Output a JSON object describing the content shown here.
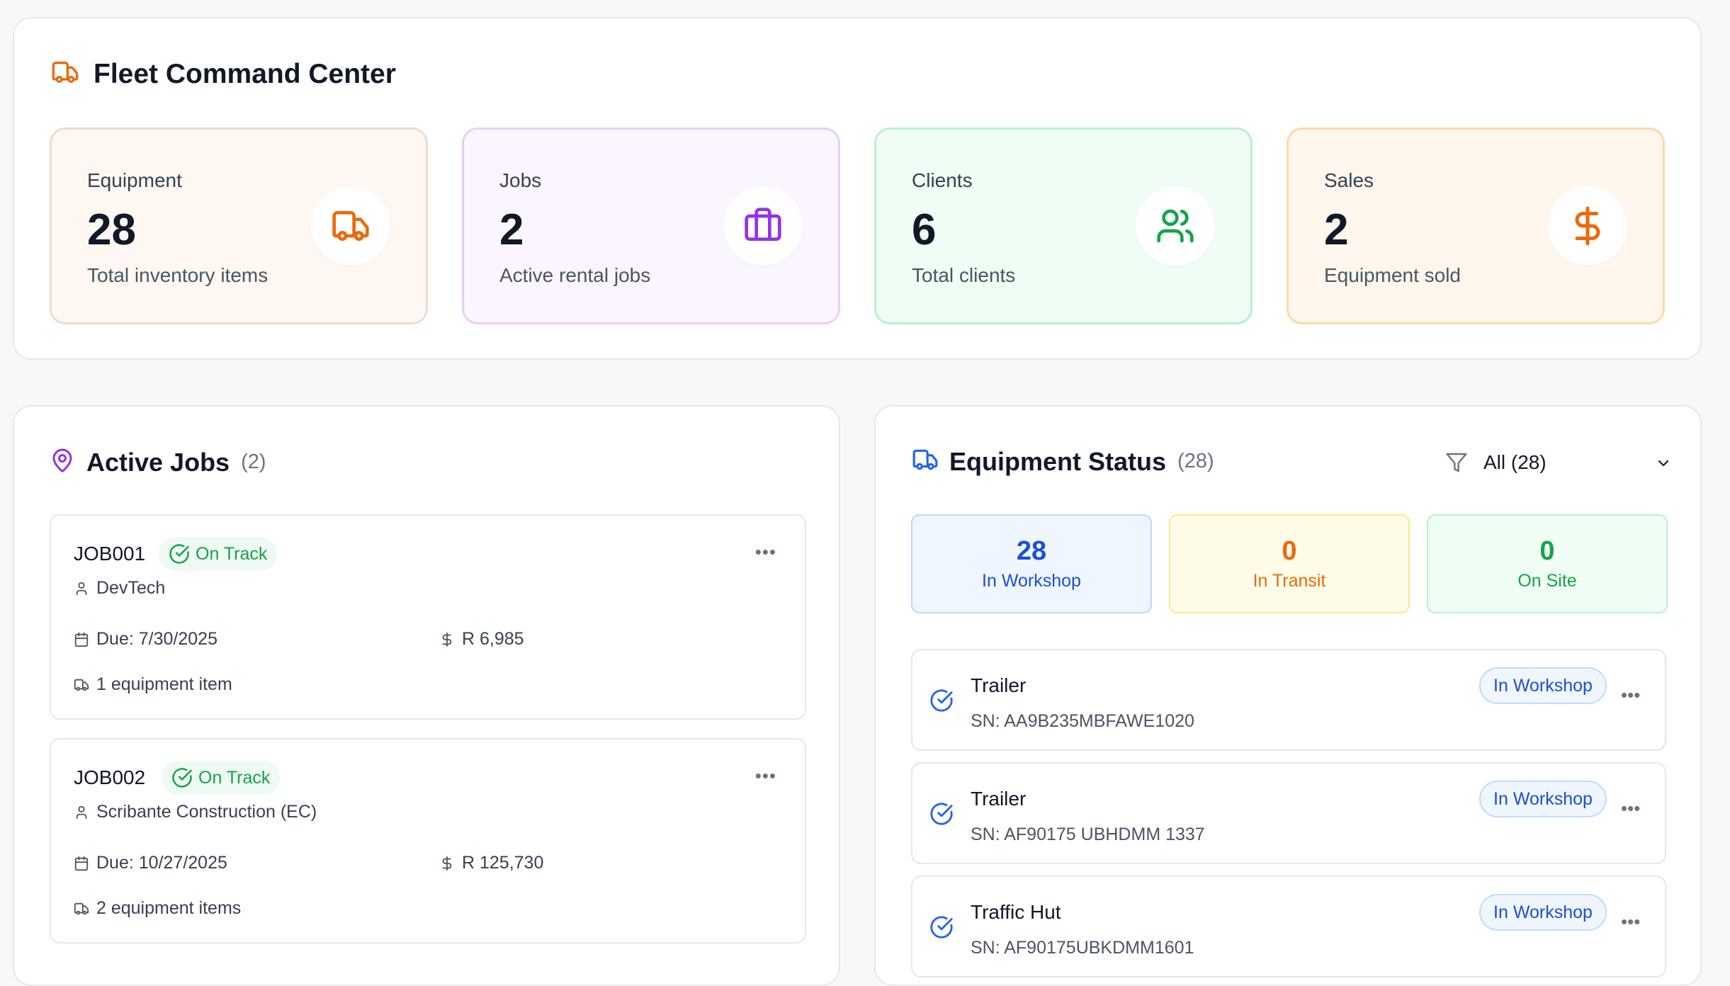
{
  "header": {
    "title": "Fleet Command Center"
  },
  "stats": [
    {
      "label": "Equipment",
      "value": "28",
      "sub": "Total inventory items",
      "icon": "truck-icon"
    },
    {
      "label": "Jobs",
      "value": "2",
      "sub": "Active rental jobs",
      "icon": "briefcase-icon"
    },
    {
      "label": "Clients",
      "value": "6",
      "sub": "Total clients",
      "icon": "users-icon"
    },
    {
      "label": "Sales",
      "value": "2",
      "sub": "Equipment sold",
      "icon": "dollar-icon"
    }
  ],
  "colors": {
    "orange": "#ea6a0c",
    "purple": "#9333ea",
    "green": "#16a34a",
    "blue": "#2563eb"
  },
  "active_jobs": {
    "title": "Active Jobs",
    "count": "(2)",
    "jobs": [
      {
        "id": "JOB001",
        "status": "On Track",
        "client": "DevTech",
        "due": "Due: 7/30/2025",
        "amount": "R 6,985",
        "items": "1 equipment item"
      },
      {
        "id": "JOB002",
        "status": "On Track",
        "client": "Scribante Construction (EC)",
        "due": "Due: 10/27/2025",
        "amount": "R 125,730",
        "items": "2 equipment items"
      }
    ]
  },
  "equipment_status": {
    "title": "Equipment Status",
    "count": "(28)",
    "filter": "All (28)",
    "summary": [
      {
        "value": "28",
        "label": "In Workshop"
      },
      {
        "value": "0",
        "label": "In Transit"
      },
      {
        "value": "0",
        "label": "On Site"
      }
    ],
    "items": [
      {
        "name": "Trailer",
        "sn": "SN: AA9B235MBFAWE1020",
        "status": "In Workshop"
      },
      {
        "name": "Trailer",
        "sn": "SN: AF90175 UBHDMM 1337",
        "status": "In Workshop"
      },
      {
        "name": "Traffic Hut",
        "sn": "SN: AF90175UBKDMM1601",
        "status": "In Workshop"
      }
    ]
  }
}
